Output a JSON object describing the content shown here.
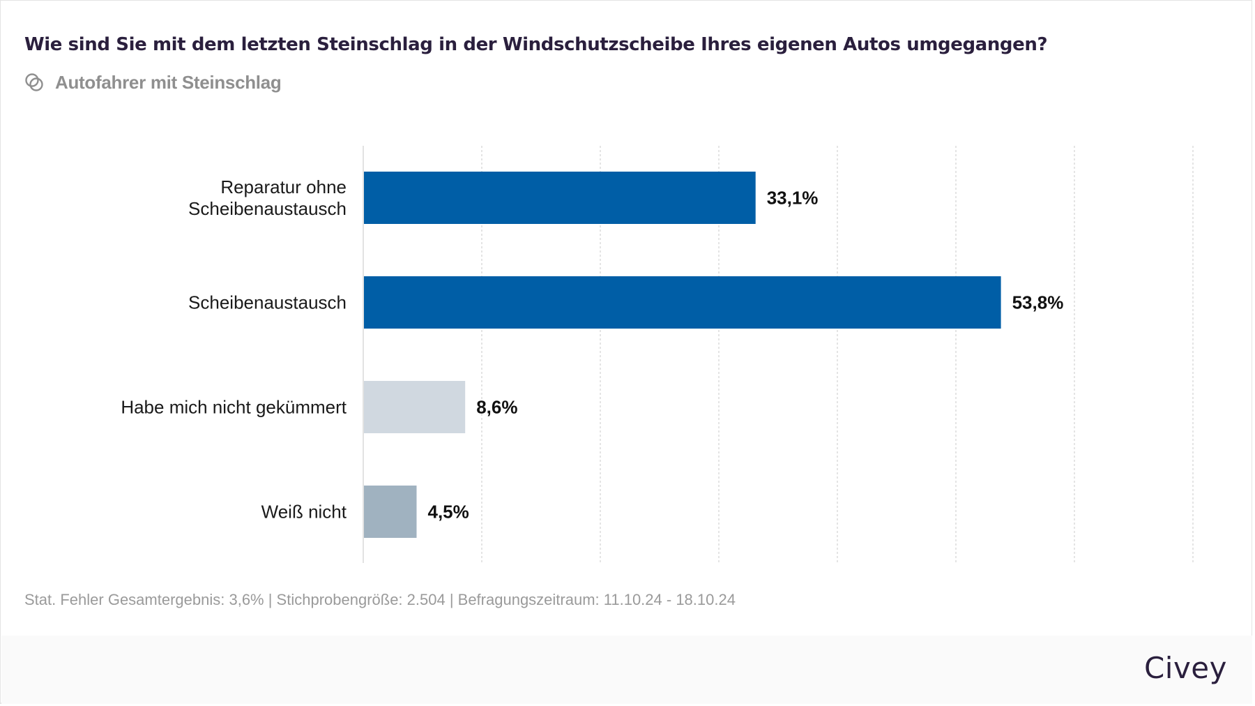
{
  "header": {
    "title": "Wie sind Sie mit dem letzten Steinschlag in der Windschutzscheibe Ihres eigenen Autos umgegangen?",
    "subtitle_icon": "overlapping-circles-icon",
    "subtitle": "Autofahrer mit Steinschlag"
  },
  "chart_data": {
    "type": "bar",
    "orientation": "horizontal",
    "title": "Wie sind Sie mit dem letzten Steinschlag in der Windschutzscheibe Ihres eigenen Autos umgegangen?",
    "subtitle": "Autofahrer mit Steinschlag",
    "xlabel": "",
    "ylabel": "",
    "categories": [
      [
        "Reparatur ohne",
        "Scheibenaustausch"
      ],
      [
        "Scheibenaustausch"
      ],
      [
        "Habe mich nicht gekümmert"
      ],
      [
        "Weiß nicht"
      ]
    ],
    "values": [
      33.1,
      53.8,
      8.6,
      4.5
    ],
    "value_labels": [
      "33,1%",
      "53,8%",
      "8,6%",
      "4,5%"
    ],
    "colors": [
      "#005ea6",
      "#005ea6",
      "#d0d8e0",
      "#a0b2c0"
    ],
    "xlim": [
      0,
      70
    ],
    "grid_step": 10,
    "grid": true,
    "grid_style": "dotted vertical",
    "axis_tick_labels_shown": false,
    "legend": "none"
  },
  "footer": {
    "note": "Stat. Fehler Gesamtergebnis: 3,6% | Stichprobengröße: 2.504 | Befragungszeitraum: 11.10.24 - 18.10.24",
    "brand": "Civey"
  },
  "colors": {
    "title": "#2a1f3d",
    "muted": "#8f8f8f",
    "primary_bar": "#005ea6",
    "footer_bg": "#fafafa"
  }
}
